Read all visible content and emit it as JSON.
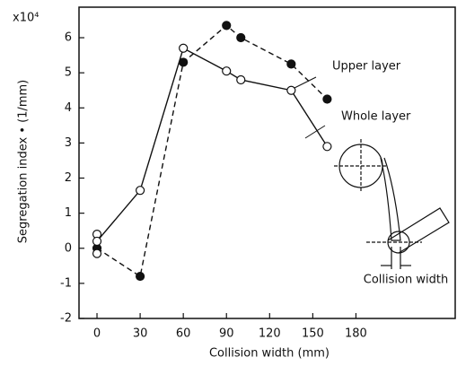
{
  "chart_data": {
    "type": "line",
    "multiplier": "x10⁴",
    "xlabel": "Collision width (mm)",
    "ylabel": "Segregation index • (1/mm)",
    "inset_label": "Collision width",
    "xlim": [
      -12.5,
      249
    ],
    "ylim": [
      -2,
      6.87
    ],
    "xticks": [
      0,
      30,
      60,
      90,
      120,
      150,
      180
    ],
    "yticks": [
      -2,
      -1,
      0,
      1,
      2,
      3,
      4,
      5,
      6
    ],
    "series": [
      {
        "name": "Upper layer",
        "color": "#111111",
        "style": "dashed",
        "marker": "filled",
        "x": [
          0,
          30,
          60,
          90,
          100,
          135,
          160
        ],
        "values": [
          0,
          -0.8,
          5.3,
          6.35,
          6.0,
          5.25,
          4.25
        ]
      },
      {
        "name": "Whole layer",
        "color": "#111111",
        "style": "solid",
        "marker": "open",
        "x": [
          0,
          0,
          0,
          30,
          60,
          90,
          100,
          135,
          160
        ],
        "values": [
          0.4,
          -0.15,
          0.2,
          1.65,
          5.7,
          5.05,
          4.8,
          4.5,
          2.9
        ]
      }
    ]
  }
}
